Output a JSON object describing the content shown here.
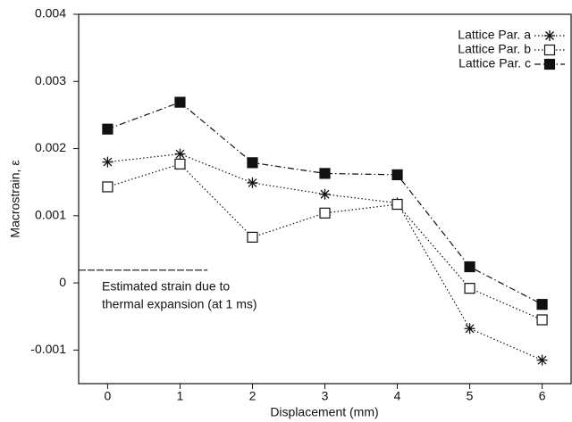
{
  "chart_data": {
    "type": "line",
    "x_label": "Displacement (mm)",
    "y_label": "Macrostrain, ε",
    "x": [
      0,
      1,
      2,
      3,
      4,
      5,
      6
    ],
    "xlim": [
      -0.4,
      6.4
    ],
    "xticks": [
      0,
      1,
      2,
      3,
      4,
      5,
      6
    ],
    "ylim": [
      -0.0015,
      0.004
    ],
    "yticks": [
      -0.001,
      0,
      0.001,
      0.002,
      0.003,
      0.004
    ],
    "legend": "upper right",
    "series": [
      {
        "name": "Lattice Par. a",
        "color": "#111111",
        "marker": "asterisk",
        "dash": "dotted",
        "values": [
          0.0018,
          0.00192,
          0.00149,
          0.00132,
          0.00119,
          -0.00068,
          -0.00115
        ]
      },
      {
        "name": "Lattice Par. b",
        "color": "#111111",
        "marker": "open-square",
        "dash": "dotted",
        "values": [
          0.00143,
          0.00177,
          0.00068,
          0.00104,
          0.00117,
          -8e-05,
          -0.00055
        ]
      },
      {
        "name": "Lattice Par. c",
        "color": "#111111",
        "marker": "filled-square",
        "dash": "dashdot",
        "values": [
          0.00229,
          0.00269,
          0.00179,
          0.00163,
          0.00161,
          0.00024,
          -0.00032
        ]
      }
    ],
    "reference_line": {
      "y": 0.00019,
      "x_end": 1.38
    },
    "annotation": [
      "Estimated strain due to",
      "thermal expansion (at 1 ms)"
    ]
  }
}
